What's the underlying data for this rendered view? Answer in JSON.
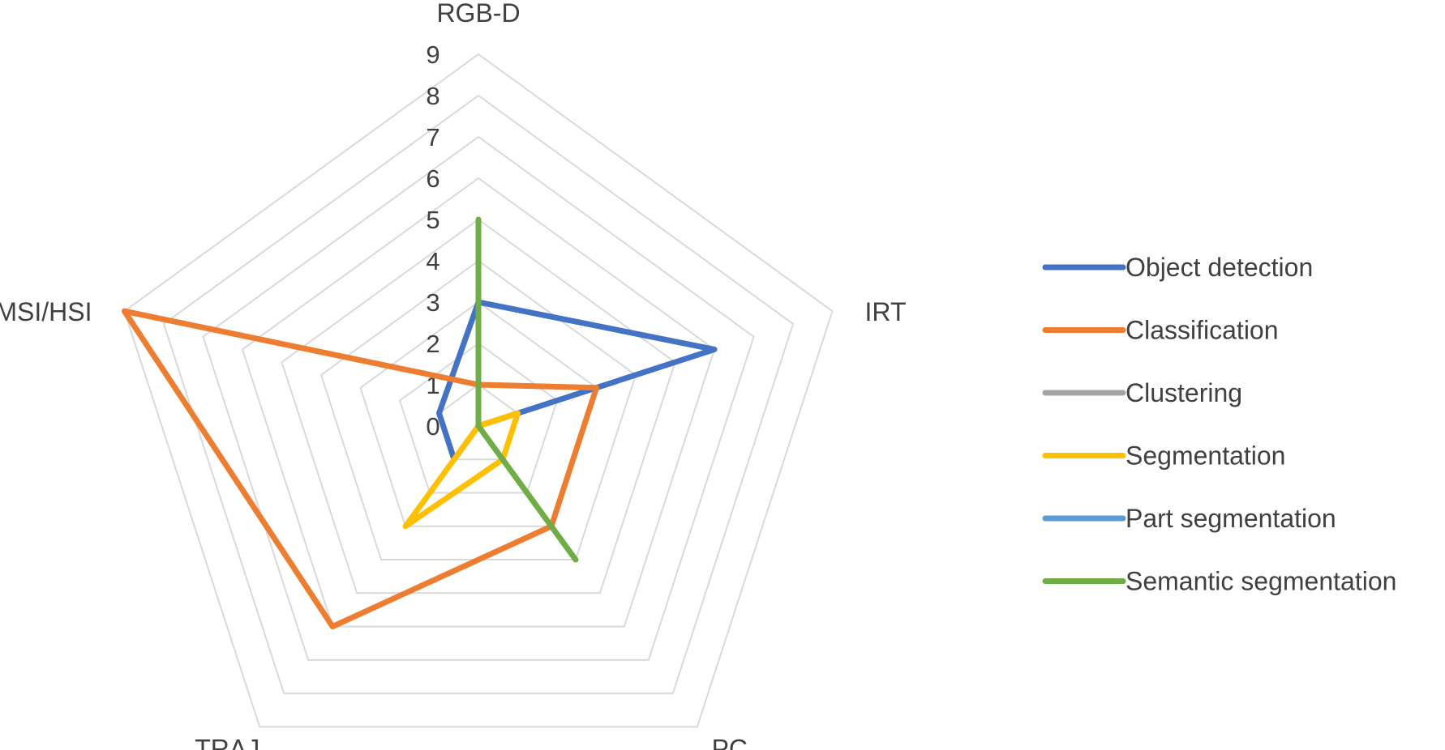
{
  "chart_data": {
    "type": "radar",
    "axes": [
      "RGB-D",
      "IRT",
      "PC",
      "TRAJ",
      "MSI/HSI"
    ],
    "rlim": [
      0,
      9
    ],
    "ticks": [
      0,
      1,
      2,
      3,
      4,
      5,
      6,
      7,
      8,
      9
    ],
    "grid": true,
    "legend_position": "right",
    "series": [
      {
        "name": "Object detection",
        "color": "#4472C4",
        "values": [
          3,
          6,
          0,
          1,
          1
        ]
      },
      {
        "name": "Classification",
        "color": "#ED7D31",
        "values": [
          1,
          3,
          3,
          6,
          9
        ]
      },
      {
        "name": "Clustering",
        "color": "#A5A5A5",
        "values": [
          0,
          0,
          0,
          0,
          0
        ]
      },
      {
        "name": "Segmentation",
        "color": "#FFC000",
        "values": [
          0,
          1,
          1,
          3,
          0
        ]
      },
      {
        "name": "Part segmentation",
        "color": "#5B9BD5",
        "values": [
          0,
          0,
          0,
          0,
          0
        ]
      },
      {
        "name": "Semantic segmentation",
        "color": "#70AD47",
        "values": [
          5,
          0,
          4,
          0,
          0
        ]
      }
    ]
  }
}
